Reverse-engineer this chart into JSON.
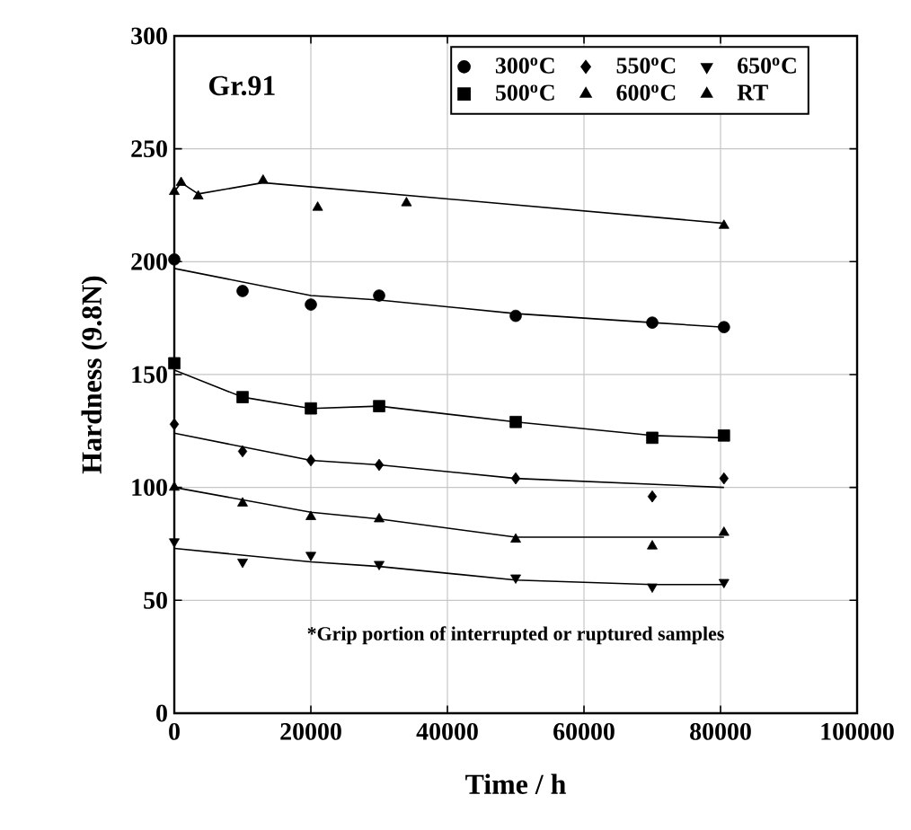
{
  "chart_data": {
    "type": "scatter",
    "title": "Gr.91",
    "xlabel": "Time / h",
    "ylabel": "Hardness (9.8N)",
    "annotations": [
      "*Grip portion of interrupted or ruptured samples"
    ],
    "xlim": [
      0,
      100000
    ],
    "ylim": [
      0,
      300
    ],
    "xticks": [
      0,
      20000,
      40000,
      60000,
      80000,
      100000
    ],
    "yticks": [
      0,
      50,
      100,
      150,
      200,
      250,
      300
    ],
    "grid": true,
    "legend": "top right",
    "series": [
      {
        "name": "300$^{o}$C",
        "color": "#000000",
        "marker": "circle",
        "x": [
          0,
          10000,
          20000,
          30000,
          50000,
          70000,
          80500
        ],
        "values": [
          201,
          187,
          181,
          185,
          176,
          173,
          171
        ]
      },
      {
        "name": "500$^{o}$C",
        "color": "#000000",
        "marker": "square",
        "x": [
          0,
          10000,
          20000,
          30000,
          50000,
          70000,
          80500
        ],
        "values": [
          155,
          140,
          135,
          136,
          129,
          122,
          123
        ]
      },
      {
        "name": "550$^{o}$C",
        "color": "#000000",
        "marker": "diamond",
        "x": [
          0,
          10000,
          20000,
          30000,
          50000,
          70000,
          80500
        ],
        "values": [
          128,
          116,
          112,
          110,
          104,
          96,
          104
        ]
      },
      {
        "name": "600$^{o}$C",
        "color": "#000000",
        "marker": "triangle",
        "x": [
          0,
          10000,
          20000,
          30000,
          50000,
          70000,
          80500
        ],
        "values": [
          100,
          93,
          87,
          86,
          77,
          74,
          80
        ]
      },
      {
        "name": "650$^{o}$C",
        "color": "#000000",
        "marker": "triangle down",
        "x": [
          0,
          10000,
          20000,
          30000,
          50000,
          70000,
          80500
        ],
        "values": [
          76,
          67,
          70,
          66,
          60,
          56,
          58
        ]
      },
      {
        "name": "RT",
        "color": "#000000",
        "marker": "triangle",
        "x": [
          0,
          1000,
          3500,
          13000,
          21000,
          34000,
          80500
        ],
        "values": [
          231,
          235,
          229,
          236,
          224,
          226,
          216
        ]
      },
      {
        "type": "line",
        "color": "#000000",
        "marker": "none",
        "x": [
          0,
          20000,
          30000,
          50000,
          70000,
          80500
        ],
        "values": [
          197,
          185,
          183,
          177,
          173,
          171
        ]
      },
      {
        "type": "line",
        "color": "#000000",
        "marker": "none",
        "x": [
          0,
          10000,
          20000,
          30000,
          50000,
          70000,
          80500
        ],
        "values": [
          152,
          140,
          135,
          136,
          129,
          123,
          122
        ]
      },
      {
        "type": "line",
        "color": "#000000",
        "marker": "none",
        "x": [
          0,
          20000,
          30000,
          50000,
          80500
        ],
        "values": [
          124,
          112,
          110,
          104,
          100
        ]
      },
      {
        "type": "line",
        "color": "#000000",
        "marker": "none",
        "x": [
          0,
          20000,
          30000,
          50000,
          80500
        ],
        "values": [
          100,
          89,
          86,
          78,
          78
        ]
      },
      {
        "type": "line",
        "color": "#000000",
        "marker": "none",
        "x": [
          0,
          20000,
          30000,
          50000,
          70000,
          80500
        ],
        "values": [
          73,
          67,
          65,
          59,
          57,
          57
        ]
      },
      {
        "type": "line",
        "color": "#000000",
        "marker": "none",
        "x": [
          0,
          1000,
          3500,
          13000,
          80500
        ],
        "values": [
          231,
          235,
          230,
          235,
          217
        ]
      }
    ]
  }
}
